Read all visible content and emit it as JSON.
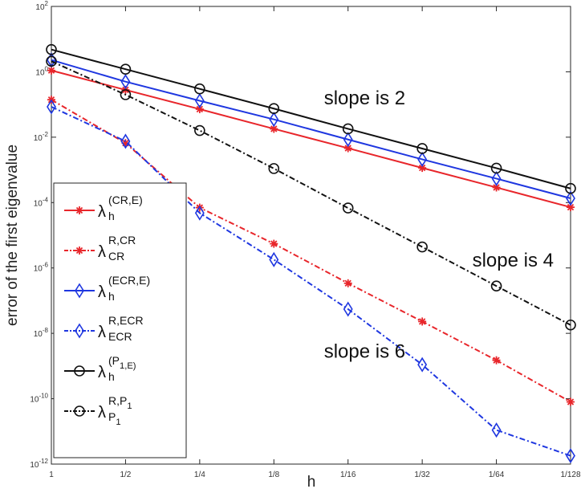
{
  "chart_data": {
    "type": "line",
    "xlabel": "h",
    "ylabel": "error of the first eigenvalue",
    "x_categories": [
      "1",
      "1/2",
      "1/4",
      "1/8",
      "1/16",
      "1/32",
      "1/64",
      "1/128"
    ],
    "x_values": [
      1,
      0.5,
      0.25,
      0.125,
      0.0625,
      0.03125,
      0.015625,
      0.0078125
    ],
    "y_scale": "log",
    "ylim": [
      1e-12,
      100
    ],
    "y_ticks": [
      {
        "value": 1e-12,
        "base": "10",
        "exp": "-12"
      },
      {
        "value": 1e-10,
        "base": "10",
        "exp": "-10"
      },
      {
        "value": 1e-08,
        "base": "10",
        "exp": "-8"
      },
      {
        "value": 1e-06,
        "base": "10",
        "exp": "-6"
      },
      {
        "value": 0.0001,
        "base": "10",
        "exp": "-4"
      },
      {
        "value": 0.01,
        "base": "10",
        "exp": "-2"
      },
      {
        "value": 1,
        "base": "10",
        "exp": "0"
      },
      {
        "value": 100,
        "base": "10",
        "exp": "2"
      }
    ],
    "grid": false,
    "legend_position": "bottom-left",
    "series": [
      {
        "legend": {
          "base": "λ",
          "sup": "(CR,E)",
          "sub": "h"
        },
        "color": "#e8262b",
        "marker": "asterisk",
        "dash": "solid",
        "values": [
          1.1,
          0.28,
          0.072,
          0.018,
          0.0046,
          0.00115,
          0.00029,
          7.2e-05
        ]
      },
      {
        "legend": {
          "base": "λ",
          "sup": "R,CR",
          "sub": "CR"
        },
        "color": "#e8262b",
        "marker": "asterisk",
        "dash": "dashdot",
        "values": [
          0.14,
          0.0066,
          7e-05,
          5.5e-06,
          3.4e-07,
          2.3e-08,
          1.5e-09,
          8e-11
        ]
      },
      {
        "legend": {
          "base": "λ",
          "sup": "(ECR,E)",
          "sub": "h"
        },
        "color": "#1f37e0",
        "marker": "diamond",
        "dash": "solid",
        "values": [
          2.3,
          0.5,
          0.13,
          0.035,
          0.0085,
          0.0021,
          0.00054,
          0.000135
        ]
      },
      {
        "legend": {
          "base": "λ",
          "sup": "R,ECR",
          "sub": "ECR"
        },
        "color": "#1f37e0",
        "marker": "diamond",
        "dash": "dashdot",
        "values": [
          0.085,
          0.0075,
          4.8e-05,
          1.8e-06,
          5.5e-08,
          1.1e-09,
          1.1e-11,
          1.8e-12
        ]
      },
      {
        "legend": {
          "base": "λ",
          "sup": "(P_1,E)",
          "sub": "h"
        },
        "color": "#111111",
        "marker": "circle",
        "dash": "solid",
        "values": [
          4.8,
          1.2,
          0.3,
          0.075,
          0.018,
          0.0045,
          0.00113,
          0.00027
        ]
      },
      {
        "legend": {
          "base": "λ",
          "sup": "R,P_1",
          "sub": "P_1"
        },
        "color": "#111111",
        "marker": "circle",
        "dash": "dashdot",
        "values": [
          2.1,
          0.2,
          0.016,
          0.0011,
          6.8e-05,
          4.4e-06,
          2.8e-07,
          1.8e-08
        ]
      }
    ],
    "annotations": [
      {
        "text": "slope is 2",
        "x": 0.0625,
        "y": 0.1
      },
      {
        "text": "slope is 4",
        "x": 0.0156,
        "y": 1.1e-06
      },
      {
        "text": "slope is 6",
        "x": 0.0625,
        "y": 1.8e-09
      }
    ]
  }
}
